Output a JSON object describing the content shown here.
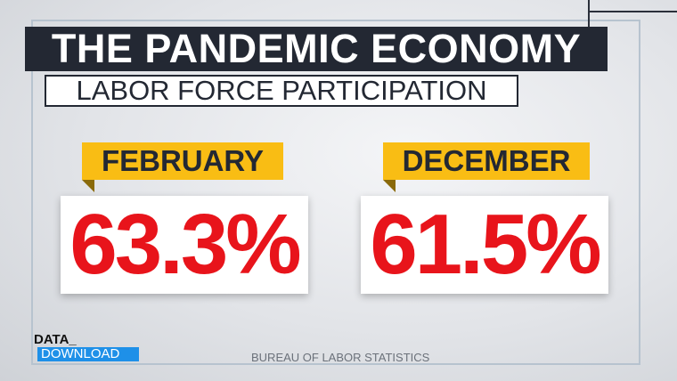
{
  "header": {
    "title": "THE PANDEMIC ECONOMY",
    "subtitle": "LABOR FORCE PARTICIPATION"
  },
  "cards": [
    {
      "label": "FEBRUARY",
      "value": "63.3%"
    },
    {
      "label": "DECEMBER",
      "value": "61.5%"
    }
  ],
  "logo": {
    "top": "DATA_",
    "bottom": "DOWNLOAD"
  },
  "source": "BUREAU OF LABOR STATISTICS"
}
